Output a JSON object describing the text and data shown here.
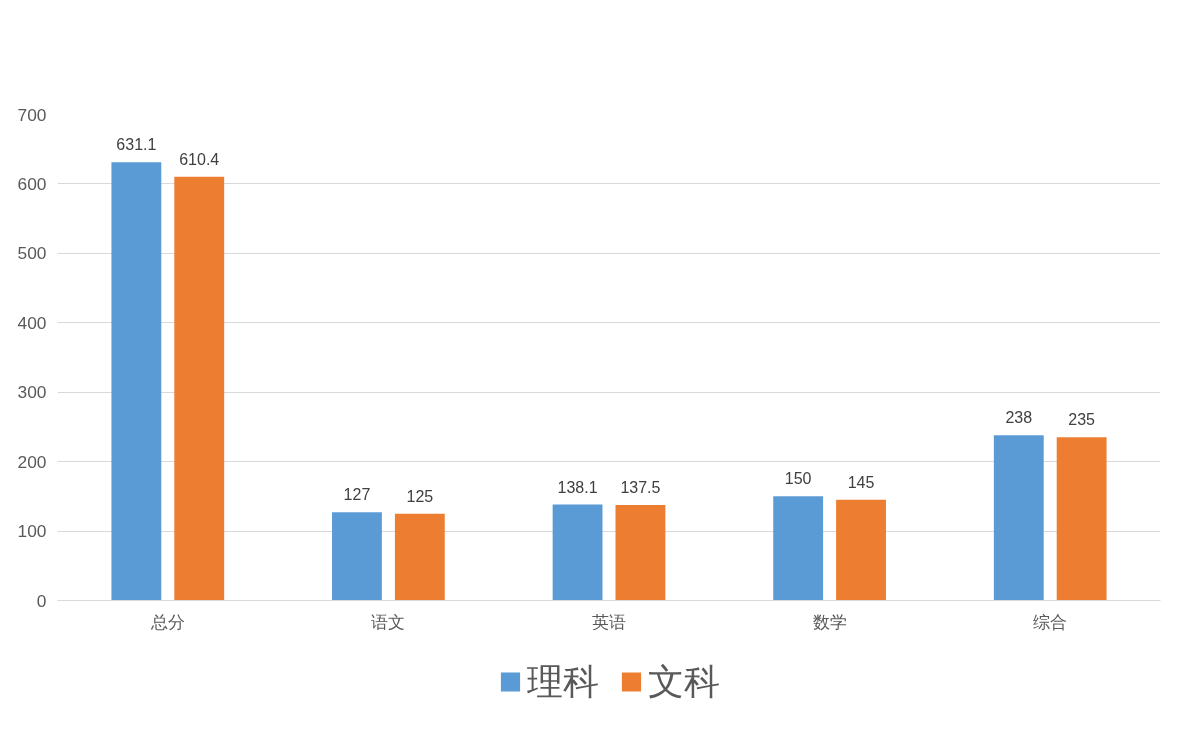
{
  "chart_data": {
    "type": "bar",
    "categories": [
      "总分",
      "语文",
      "英语",
      "数学",
      "综合"
    ],
    "series": [
      {
        "name": "理科",
        "color": "#5b9bd5",
        "values": [
          631.1,
          127,
          138.1,
          150,
          238
        ]
      },
      {
        "name": "文科",
        "color": "#ed7d31",
        "values": [
          610.4,
          125,
          137.5,
          145,
          235
        ]
      }
    ],
    "ylim": [
      0,
      700
    ],
    "yticks": [
      0,
      100,
      200,
      300,
      400,
      500,
      600,
      700
    ],
    "grid": "y",
    "legend": "bottom",
    "data_labels": true
  }
}
